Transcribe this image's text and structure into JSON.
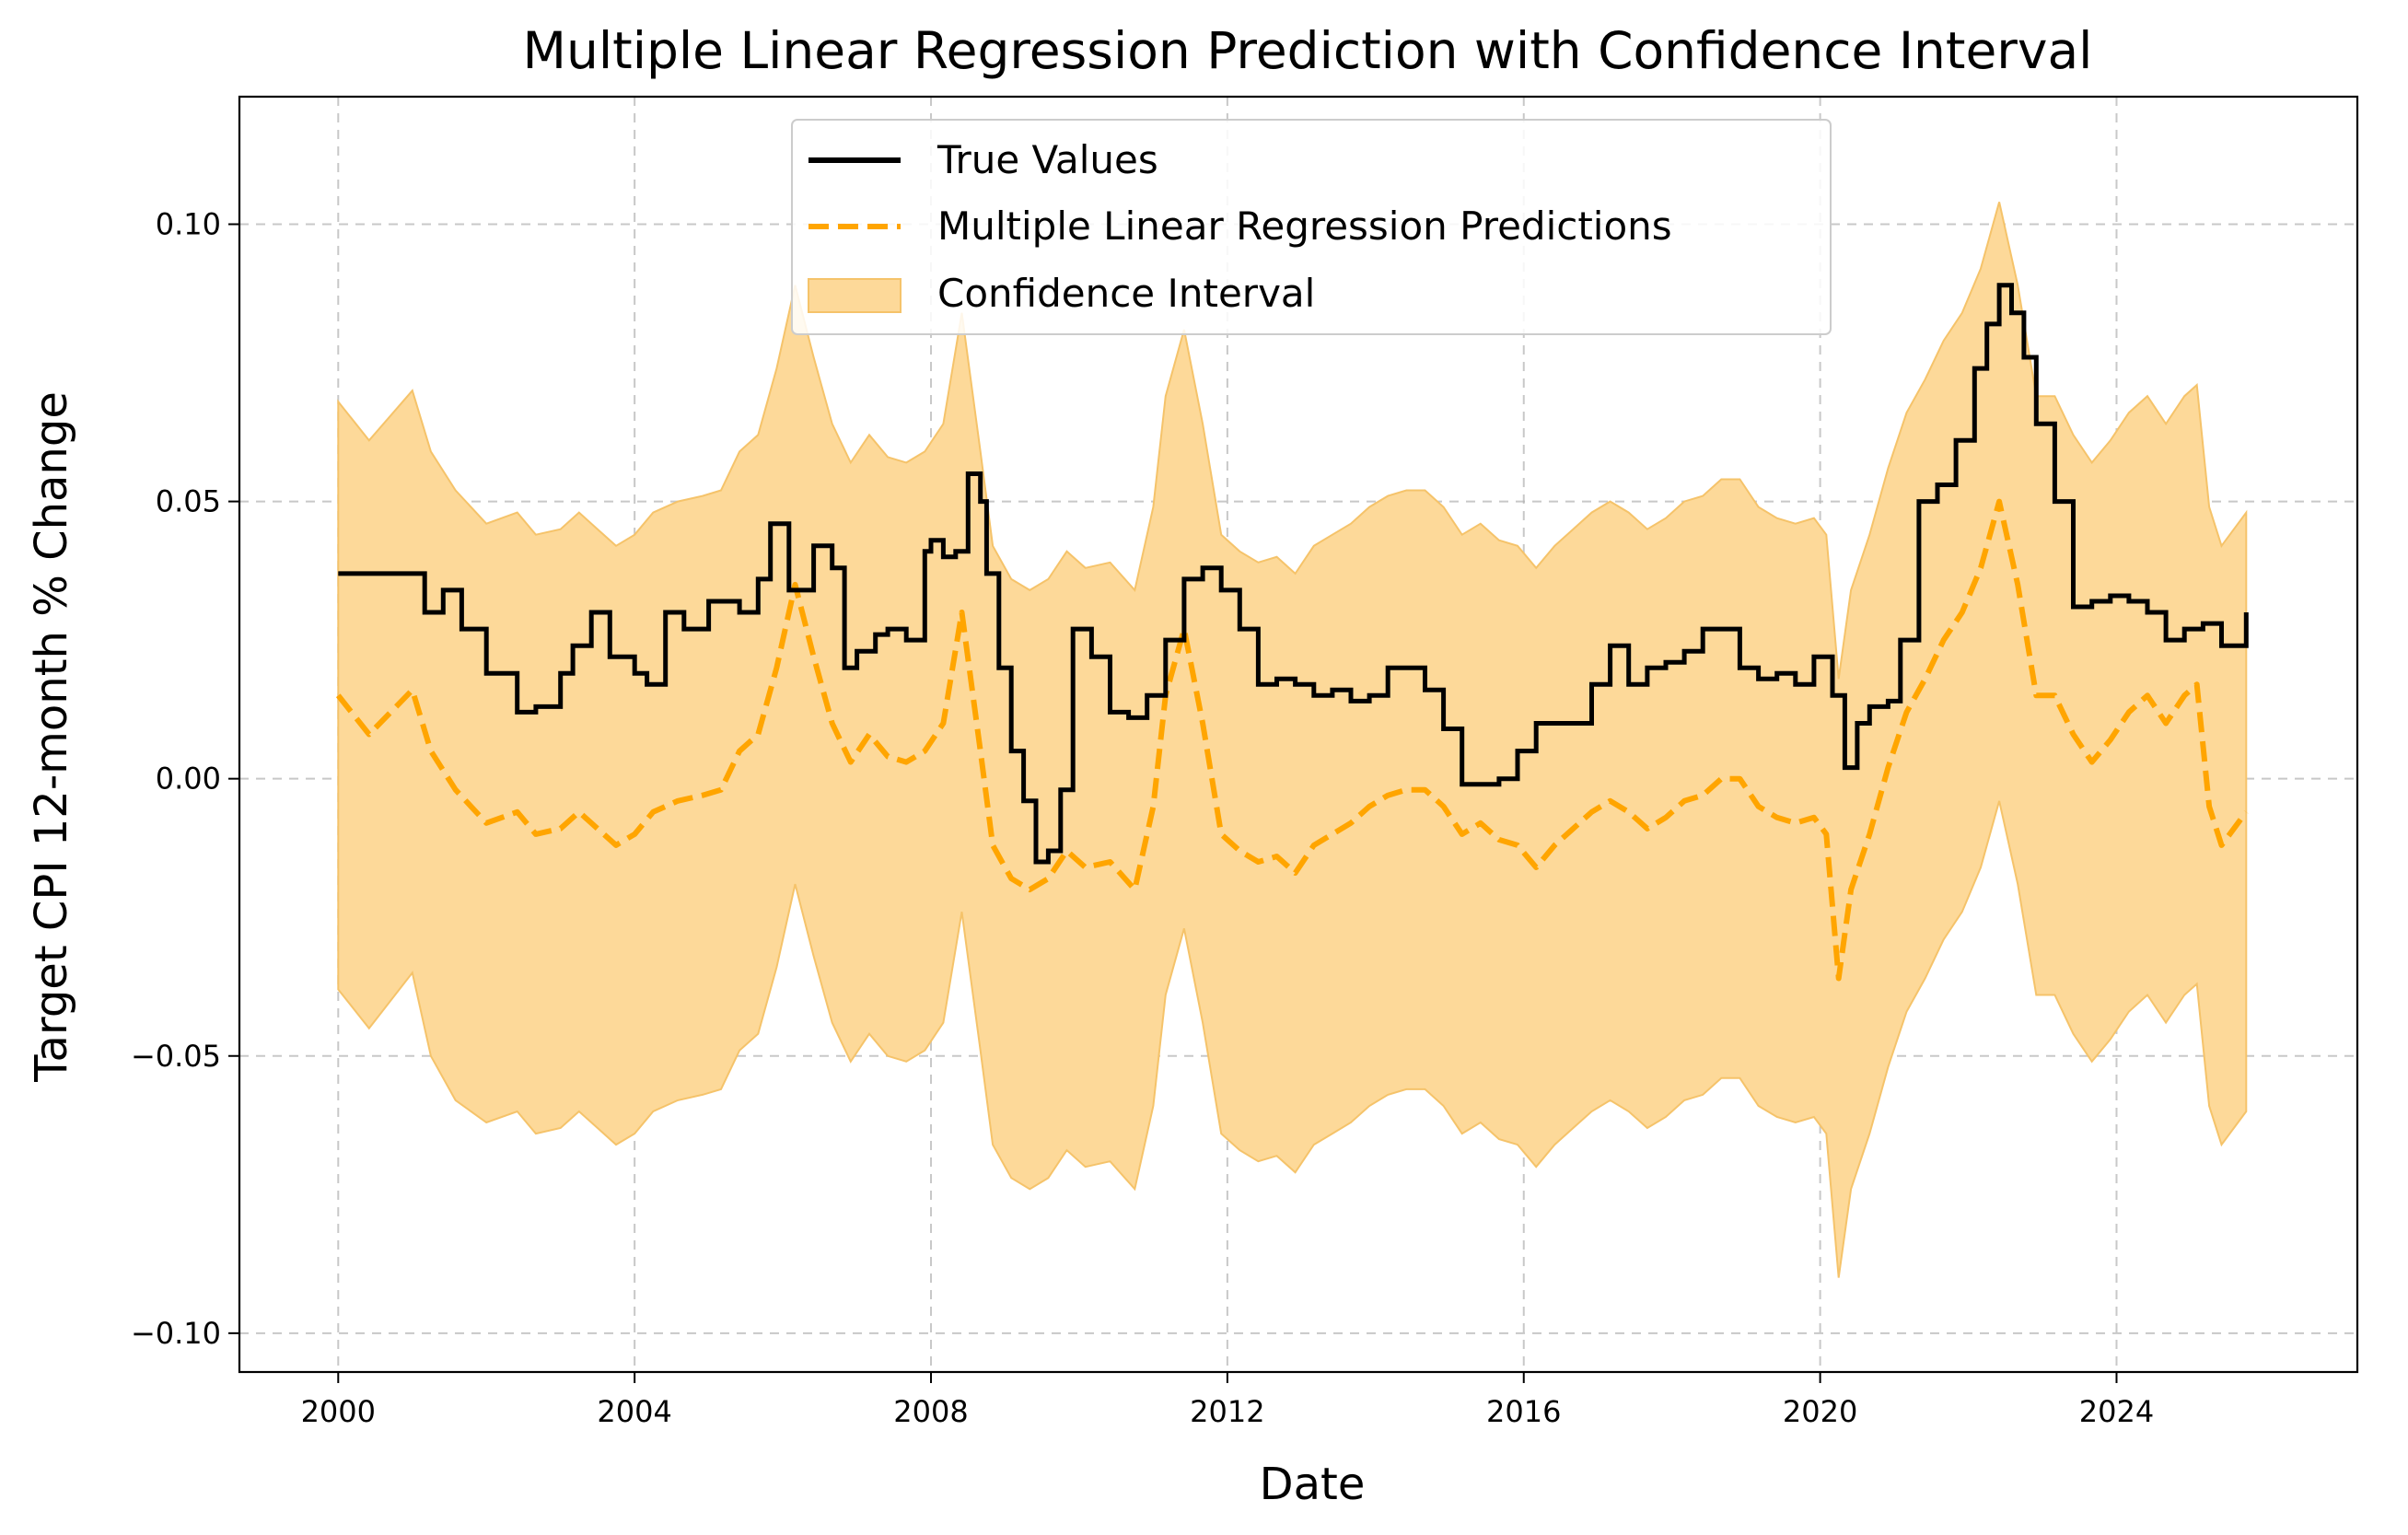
{
  "chart_data": {
    "type": "line",
    "title": "Multiple Linear Regression Prediction with Confidence Interval",
    "xlabel": "Date",
    "ylabel": "Target CPI 12-month % Change",
    "xlim": [
      "1998-09",
      "2027-04"
    ],
    "ylim": [
      -0.107,
      0.123
    ],
    "xticks": [
      "2000",
      "2004",
      "2008",
      "2012",
      "2016",
      "2020",
      "2024"
    ],
    "yticks": [
      -0.1,
      -0.05,
      0.0,
      0.05,
      0.1
    ],
    "ytick_labels": [
      "−0.10",
      "−0.05",
      "0.00",
      "0.05",
      "0.10"
    ],
    "grid": true,
    "legend_position": "top-center",
    "series": [
      {
        "name": "True Values",
        "style": "solid",
        "color": "#000000",
        "x": [
          "2000-01",
          "2000-06",
          "2001-01",
          "2001-03",
          "2001-06",
          "2001-09",
          "2002-01",
          "2002-06",
          "2002-09",
          "2003-01",
          "2003-03",
          "2003-06",
          "2003-09",
          "2004-01",
          "2004-03",
          "2004-06",
          "2004-09",
          "2005-01",
          "2005-06",
          "2005-09",
          "2005-11",
          "2006-02",
          "2006-06",
          "2006-09",
          "2006-11",
          "2007-01",
          "2007-04",
          "2007-06",
          "2007-09",
          "2007-12",
          "2008-01",
          "2008-03",
          "2008-05",
          "2008-07",
          "2008-09",
          "2008-10",
          "2008-12",
          "2009-02",
          "2009-04",
          "2009-06",
          "2009-08",
          "2009-10",
          "2009-12",
          "2010-03",
          "2010-06",
          "2010-09",
          "2010-12",
          "2011-03",
          "2011-06",
          "2011-09",
          "2011-12",
          "2012-03",
          "2012-06",
          "2012-09",
          "2012-12",
          "2013-03",
          "2013-06",
          "2013-09",
          "2013-12",
          "2014-03",
          "2014-06",
          "2014-09",
          "2014-12",
          "2015-03",
          "2015-06",
          "2015-09",
          "2015-12",
          "2016-03",
          "2016-06",
          "2016-09",
          "2016-12",
          "2017-03",
          "2017-06",
          "2017-09",
          "2017-12",
          "2018-03",
          "2018-06",
          "2018-09",
          "2018-12",
          "2019-03",
          "2019-06",
          "2019-09",
          "2019-12",
          "2020-03",
          "2020-05",
          "2020-07",
          "2020-09",
          "2020-12",
          "2021-02",
          "2021-05",
          "2021-08",
          "2021-11",
          "2022-02",
          "2022-04",
          "2022-06",
          "2022-08",
          "2022-10",
          "2022-12",
          "2023-03",
          "2023-06",
          "2023-09",
          "2023-12",
          "2024-03",
          "2024-06",
          "2024-09",
          "2024-12",
          "2025-03",
          "2025-06",
          "2025-10"
        ],
        "y": [
          0.037,
          0.037,
          0.037,
          0.03,
          0.034,
          0.027,
          0.019,
          0.012,
          0.013,
          0.019,
          0.024,
          0.03,
          0.022,
          0.019,
          0.017,
          0.03,
          0.027,
          0.032,
          0.03,
          0.036,
          0.046,
          0.034,
          0.042,
          0.038,
          0.02,
          0.023,
          0.026,
          0.027,
          0.025,
          0.041,
          0.043,
          0.04,
          0.041,
          0.055,
          0.05,
          0.037,
          0.02,
          0.005,
          -0.004,
          -0.015,
          -0.013,
          -0.002,
          0.027,
          0.022,
          0.012,
          0.011,
          0.015,
          0.025,
          0.036,
          0.038,
          0.034,
          0.027,
          0.017,
          0.018,
          0.017,
          0.015,
          0.016,
          0.014,
          0.015,
          0.02,
          0.02,
          0.016,
          0.009,
          -0.001,
          -0.001,
          0.0,
          0.005,
          0.01,
          0.01,
          0.01,
          0.017,
          0.024,
          0.017,
          0.02,
          0.021,
          0.023,
          0.027,
          0.027,
          0.02,
          0.018,
          0.019,
          0.017,
          0.022,
          0.015,
          0.002,
          0.01,
          0.013,
          0.014,
          0.025,
          0.05,
          0.053,
          0.061,
          0.074,
          0.082,
          0.089,
          0.084,
          0.076,
          0.064,
          0.05,
          0.031,
          0.032,
          0.033,
          0.032,
          0.03,
          0.025,
          0.027,
          0.028,
          0.024,
          0.03
        ]
      },
      {
        "name": "Multiple Linear Regression Predictions",
        "style": "dashed",
        "color": "#ffa500",
        "x": [
          "2000-01",
          "2000-06",
          "2001-01",
          "2001-04",
          "2001-08",
          "2002-01",
          "2002-06",
          "2002-09",
          "2003-01",
          "2003-04",
          "2003-07",
          "2003-10",
          "2004-01",
          "2004-04",
          "2004-08",
          "2004-12",
          "2005-03",
          "2005-06",
          "2005-09",
          "2005-12",
          "2006-03",
          "2006-06",
          "2006-09",
          "2006-12",
          "2007-03",
          "2007-06",
          "2007-09",
          "2007-12",
          "2008-03",
          "2008-06",
          "2008-09",
          "2008-11",
          "2009-02",
          "2009-05",
          "2009-08",
          "2009-11",
          "2010-02",
          "2010-06",
          "2010-10",
          "2011-01",
          "2011-03",
          "2011-06",
          "2011-09",
          "2011-12",
          "2012-03",
          "2012-06",
          "2012-09",
          "2012-12",
          "2013-03",
          "2013-06",
          "2013-09",
          "2013-12",
          "2014-03",
          "2014-06",
          "2014-09",
          "2014-12",
          "2015-03",
          "2015-06",
          "2015-09",
          "2015-12",
          "2016-03",
          "2016-06",
          "2016-09",
          "2016-12",
          "2017-03",
          "2017-06",
          "2017-09",
          "2017-12",
          "2018-03",
          "2018-06",
          "2018-09",
          "2018-12",
          "2019-03",
          "2019-06",
          "2019-09",
          "2019-12",
          "2020-02",
          "2020-04",
          "2020-06",
          "2020-09",
          "2020-12",
          "2021-03",
          "2021-06",
          "2021-09",
          "2021-12",
          "2022-03",
          "2022-06",
          "2022-09",
          "2022-12",
          "2023-03",
          "2023-06",
          "2023-09",
          "2023-12",
          "2024-03",
          "2024-06",
          "2024-09",
          "2024-12",
          "2025-02",
          "2025-04",
          "2025-06",
          "2025-10"
        ],
        "y": [
          0.015,
          0.008,
          0.016,
          0.005,
          -0.002,
          -0.008,
          -0.006,
          -0.01,
          -0.009,
          -0.006,
          -0.009,
          -0.012,
          -0.01,
          -0.006,
          -0.004,
          -0.003,
          -0.002,
          0.005,
          0.008,
          0.02,
          0.035,
          0.022,
          0.01,
          0.003,
          0.008,
          0.004,
          0.003,
          0.005,
          0.01,
          0.03,
          0.005,
          -0.012,
          -0.018,
          -0.02,
          -0.018,
          -0.013,
          -0.016,
          -0.015,
          -0.02,
          -0.005,
          0.015,
          0.027,
          0.01,
          -0.01,
          -0.013,
          -0.015,
          -0.014,
          -0.017,
          -0.012,
          -0.01,
          -0.008,
          -0.005,
          -0.003,
          -0.002,
          -0.002,
          -0.005,
          -0.01,
          -0.008,
          -0.011,
          -0.012,
          -0.016,
          -0.012,
          -0.009,
          -0.006,
          -0.004,
          -0.006,
          -0.009,
          -0.007,
          -0.004,
          -0.003,
          0.0,
          0.0,
          -0.005,
          -0.007,
          -0.008,
          -0.007,
          -0.01,
          -0.036,
          -0.02,
          -0.01,
          0.002,
          0.012,
          0.018,
          0.025,
          0.03,
          0.038,
          0.05,
          0.035,
          0.015,
          0.015,
          0.008,
          0.003,
          0.007,
          0.012,
          0.015,
          0.01,
          0.015,
          0.017,
          -0.005,
          -0.012,
          -0.006
        ]
      },
      {
        "name": "Confidence Interval",
        "style": "band",
        "color": "#fdd999",
        "x": [
          "2000-01",
          "2000-06",
          "2001-01",
          "2001-04",
          "2001-08",
          "2002-01",
          "2002-06",
          "2002-09",
          "2003-01",
          "2003-04",
          "2003-07",
          "2003-10",
          "2004-01",
          "2004-04",
          "2004-08",
          "2004-12",
          "2005-03",
          "2005-06",
          "2005-09",
          "2005-12",
          "2006-03",
          "2006-06",
          "2006-09",
          "2006-12",
          "2007-03",
          "2007-06",
          "2007-09",
          "2007-12",
          "2008-03",
          "2008-06",
          "2008-09",
          "2008-11",
          "2009-02",
          "2009-05",
          "2009-08",
          "2009-11",
          "2010-02",
          "2010-06",
          "2010-10",
          "2011-01",
          "2011-03",
          "2011-06",
          "2011-09",
          "2011-12",
          "2012-03",
          "2012-06",
          "2012-09",
          "2012-12",
          "2013-03",
          "2013-06",
          "2013-09",
          "2013-12",
          "2014-03",
          "2014-06",
          "2014-09",
          "2014-12",
          "2015-03",
          "2015-06",
          "2015-09",
          "2015-12",
          "2016-03",
          "2016-06",
          "2016-09",
          "2016-12",
          "2017-03",
          "2017-06",
          "2017-09",
          "2017-12",
          "2018-03",
          "2018-06",
          "2018-09",
          "2018-12",
          "2019-03",
          "2019-06",
          "2019-09",
          "2019-12",
          "2020-02",
          "2020-04",
          "2020-06",
          "2020-09",
          "2020-12",
          "2021-03",
          "2021-06",
          "2021-09",
          "2021-12",
          "2022-03",
          "2022-06",
          "2022-09",
          "2022-12",
          "2023-03",
          "2023-06",
          "2023-09",
          "2023-12",
          "2024-03",
          "2024-06",
          "2024-09",
          "2024-12",
          "2025-02",
          "2025-04",
          "2025-06",
          "2025-10"
        ],
        "lower": [
          -0.038,
          -0.045,
          -0.035,
          -0.05,
          -0.058,
          -0.062,
          -0.06,
          -0.064,
          -0.063,
          -0.06,
          -0.063,
          -0.066,
          -0.064,
          -0.06,
          -0.058,
          -0.057,
          -0.056,
          -0.049,
          -0.046,
          -0.034,
          -0.019,
          -0.032,
          -0.044,
          -0.051,
          -0.046,
          -0.05,
          -0.051,
          -0.049,
          -0.044,
          -0.024,
          -0.049,
          -0.066,
          -0.072,
          -0.074,
          -0.072,
          -0.067,
          -0.07,
          -0.069,
          -0.074,
          -0.059,
          -0.039,
          -0.027,
          -0.044,
          -0.064,
          -0.067,
          -0.069,
          -0.068,
          -0.071,
          -0.066,
          -0.064,
          -0.062,
          -0.059,
          -0.057,
          -0.056,
          -0.056,
          -0.059,
          -0.064,
          -0.062,
          -0.065,
          -0.066,
          -0.07,
          -0.066,
          -0.063,
          -0.06,
          -0.058,
          -0.06,
          -0.063,
          -0.061,
          -0.058,
          -0.057,
          -0.054,
          -0.054,
          -0.059,
          -0.061,
          -0.062,
          -0.061,
          -0.064,
          -0.09,
          -0.074,
          -0.064,
          -0.052,
          -0.042,
          -0.036,
          -0.029,
          -0.024,
          -0.016,
          -0.004,
          -0.019,
          -0.039,
          -0.039,
          -0.046,
          -0.051,
          -0.047,
          -0.042,
          -0.039,
          -0.044,
          -0.039,
          -0.037,
          -0.059,
          -0.066,
          -0.06
        ],
        "upper": [
          0.068,
          0.061,
          0.07,
          0.059,
          0.052,
          0.046,
          0.048,
          0.044,
          0.045,
          0.048,
          0.045,
          0.042,
          0.044,
          0.048,
          0.05,
          0.051,
          0.052,
          0.059,
          0.062,
          0.074,
          0.089,
          0.076,
          0.064,
          0.057,
          0.062,
          0.058,
          0.057,
          0.059,
          0.064,
          0.084,
          0.059,
          0.042,
          0.036,
          0.034,
          0.036,
          0.041,
          0.038,
          0.039,
          0.034,
          0.049,
          0.069,
          0.081,
          0.064,
          0.044,
          0.041,
          0.039,
          0.04,
          0.037,
          0.042,
          0.044,
          0.046,
          0.049,
          0.051,
          0.052,
          0.052,
          0.049,
          0.044,
          0.046,
          0.043,
          0.042,
          0.038,
          0.042,
          0.045,
          0.048,
          0.05,
          0.048,
          0.045,
          0.047,
          0.05,
          0.051,
          0.054,
          0.054,
          0.049,
          0.047,
          0.046,
          0.047,
          0.044,
          0.018,
          0.034,
          0.044,
          0.056,
          0.066,
          0.072,
          0.079,
          0.084,
          0.092,
          0.104,
          0.089,
          0.069,
          0.069,
          0.062,
          0.057,
          0.061,
          0.066,
          0.069,
          0.064,
          0.069,
          0.071,
          0.049,
          0.042,
          0.048
        ]
      }
    ]
  }
}
